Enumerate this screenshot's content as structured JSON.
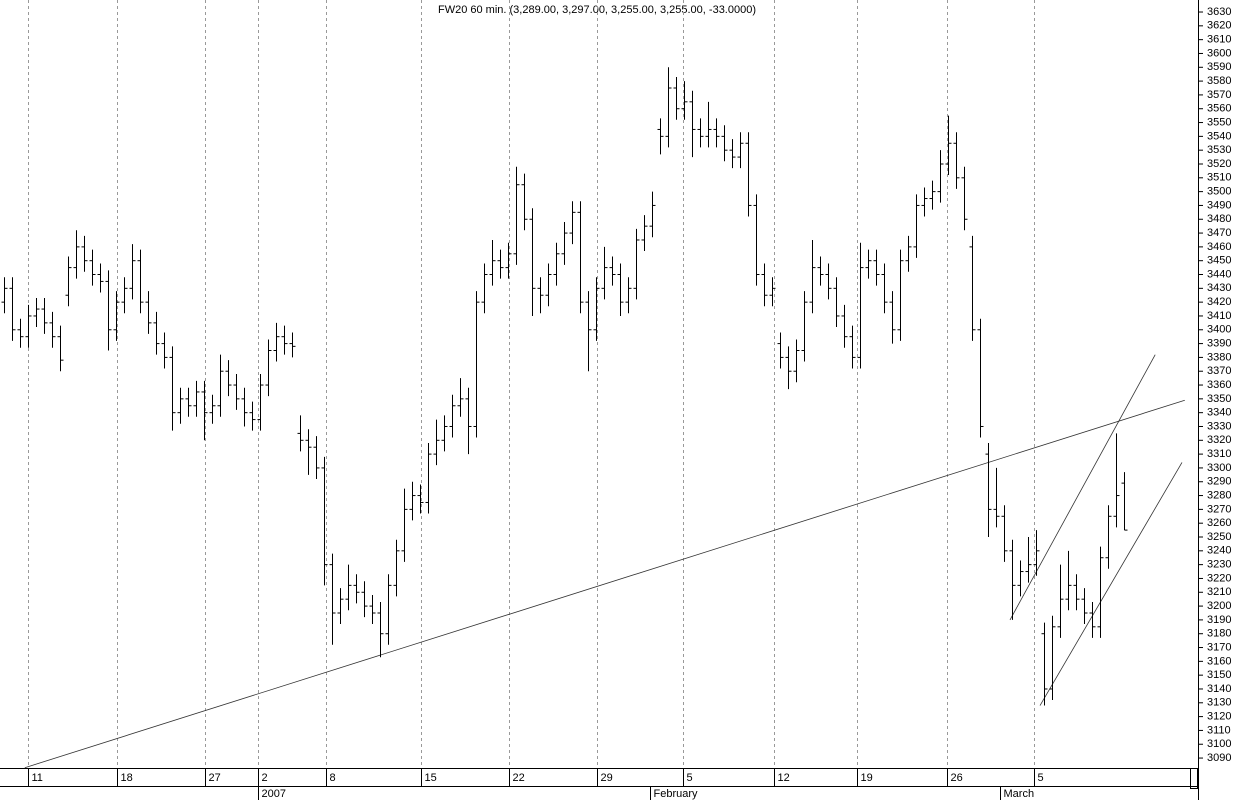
{
  "chart_data": {
    "type": "ohlc",
    "title": "FW20 60 min. (3,289.00, 3,297.00, 3,255.00, 3,255.00, -33.0000)",
    "color": "#000000",
    "ohlc": [
      [
        3420,
        3438,
        3412,
        3430
      ],
      [
        3430,
        3438,
        3392,
        3400
      ],
      [
        3400,
        3408,
        3387,
        3395
      ],
      [
        3395,
        3418,
        3387,
        3410
      ],
      [
        3410,
        3423,
        3402,
        3415
      ],
      [
        3415,
        3423,
        3397,
        3405
      ],
      [
        3405,
        3413,
        3387,
        3395
      ],
      [
        3395,
        3403,
        3370,
        3378
      ],
      [
        3425,
        3453,
        3417,
        3445
      ],
      [
        3445,
        3472,
        3437,
        3460
      ],
      [
        3460,
        3468,
        3442,
        3450
      ],
      [
        3450,
        3458,
        3432,
        3440
      ],
      [
        3440,
        3448,
        3427,
        3435
      ],
      [
        3435,
        3443,
        3385,
        3400
      ],
      [
        3400,
        3428,
        3392,
        3420
      ],
      [
        3420,
        3438,
        3412,
        3430
      ],
      [
        3430,
        3462,
        3422,
        3450
      ],
      [
        3450,
        3458,
        3412,
        3420
      ],
      [
        3420,
        3428,
        3397,
        3405
      ],
      [
        3405,
        3413,
        3382,
        3390
      ],
      [
        3390,
        3398,
        3372,
        3380
      ],
      [
        3380,
        3388,
        3327,
        3340
      ],
      [
        3340,
        3358,
        3332,
        3350
      ],
      [
        3350,
        3358,
        3337,
        3345
      ],
      [
        3345,
        3363,
        3337,
        3355
      ],
      [
        3355,
        3363,
        3320,
        3340
      ],
      [
        3340,
        3353,
        3332,
        3345
      ],
      [
        3345,
        3382,
        3337,
        3370
      ],
      [
        3370,
        3378,
        3352,
        3360
      ],
      [
        3360,
        3368,
        3342,
        3350
      ],
      [
        3350,
        3358,
        3330,
        3340
      ],
      [
        3340,
        3348,
        3327,
        3335
      ],
      [
        3335,
        3368,
        3327,
        3360
      ],
      [
        3360,
        3393,
        3352,
        3385
      ],
      [
        3385,
        3405,
        3377,
        3395
      ],
      [
        3395,
        3403,
        3382,
        3390
      ],
      [
        3390,
        3398,
        3380,
        3388
      ],
      [
        3325,
        3338,
        3312,
        3320
      ],
      [
        3320,
        3328,
        3295,
        3315
      ],
      [
        3315,
        3323,
        3292,
        3300
      ],
      [
        3300,
        3308,
        3215,
        3230
      ],
      [
        3230,
        3238,
        3172,
        3195
      ],
      [
        3195,
        3213,
        3187,
        3205
      ],
      [
        3205,
        3230,
        3197,
        3215
      ],
      [
        3215,
        3223,
        3202,
        3210
      ],
      [
        3210,
        3218,
        3192,
        3200
      ],
      [
        3200,
        3208,
        3187,
        3195
      ],
      [
        3195,
        3203,
        3163,
        3180
      ],
      [
        3180,
        3223,
        3172,
        3215
      ],
      [
        3215,
        3248,
        3207,
        3240
      ],
      [
        3240,
        3285,
        3232,
        3270
      ],
      [
        3270,
        3290,
        3262,
        3280
      ],
      [
        3280,
        3288,
        3267,
        3275
      ],
      [
        3275,
        3318,
        3267,
        3310
      ],
      [
        3310,
        3335,
        3302,
        3320
      ],
      [
        3320,
        3338,
        3312,
        3330
      ],
      [
        3330,
        3353,
        3322,
        3345
      ],
      [
        3345,
        3365,
        3337,
        3350
      ],
      [
        3350,
        3358,
        3310,
        3330
      ],
      [
        3330,
        3428,
        3322,
        3420
      ],
      [
        3420,
        3448,
        3412,
        3440
      ],
      [
        3440,
        3465,
        3432,
        3450
      ],
      [
        3450,
        3458,
        3437,
        3445
      ],
      [
        3445,
        3463,
        3437,
        3455
      ],
      [
        3455,
        3518,
        3447,
        3505
      ],
      [
        3505,
        3513,
        3472,
        3480
      ],
      [
        3480,
        3488,
        3410,
        3430
      ],
      [
        3430,
        3438,
        3412,
        3425
      ],
      [
        3425,
        3448,
        3417,
        3440
      ],
      [
        3440,
        3463,
        3432,
        3455
      ],
      [
        3455,
        3478,
        3447,
        3470
      ],
      [
        3470,
        3493,
        3462,
        3485
      ],
      [
        3485,
        3493,
        3412,
        3420
      ],
      [
        3420,
        3428,
        3370,
        3400
      ],
      [
        3400,
        3438,
        3392,
        3430
      ],
      [
        3430,
        3460,
        3422,
        3445
      ],
      [
        3445,
        3453,
        3432,
        3440
      ],
      [
        3440,
        3448,
        3410,
        3420
      ],
      [
        3420,
        3438,
        3412,
        3430
      ],
      [
        3430,
        3473,
        3422,
        3465
      ],
      [
        3465,
        3483,
        3457,
        3475
      ],
      [
        3475,
        3500,
        3467,
        3490
      ],
      [
        3545,
        3553,
        3527,
        3540
      ],
      [
        3540,
        3590,
        3532,
        3575
      ],
      [
        3575,
        3583,
        3552,
        3560
      ],
      [
        3560,
        3580,
        3552,
        3565
      ],
      [
        3565,
        3573,
        3525,
        3545
      ],
      [
        3545,
        3553,
        3532,
        3540
      ],
      [
        3540,
        3565,
        3532,
        3545
      ],
      [
        3545,
        3553,
        3532,
        3540
      ],
      [
        3540,
        3548,
        3522,
        3530
      ],
      [
        3530,
        3538,
        3517,
        3525
      ],
      [
        3525,
        3543,
        3517,
        3535
      ],
      [
        3535,
        3543,
        3482,
        3490
      ],
      [
        3490,
        3498,
        3432,
        3440
      ],
      [
        3440,
        3448,
        3417,
        3425
      ],
      [
        3425,
        3438,
        3417,
        3430
      ],
      [
        3390,
        3398,
        3372,
        3380
      ],
      [
        3380,
        3388,
        3357,
        3370
      ],
      [
        3370,
        3393,
        3362,
        3385
      ],
      [
        3385,
        3428,
        3377,
        3420
      ],
      [
        3420,
        3465,
        3412,
        3445
      ],
      [
        3445,
        3453,
        3432,
        3440
      ],
      [
        3440,
        3448,
        3422,
        3430
      ],
      [
        3430,
        3438,
        3402,
        3410
      ],
      [
        3410,
        3418,
        3387,
        3395
      ],
      [
        3395,
        3403,
        3372,
        3380
      ],
      [
        3380,
        3463,
        3372,
        3445
      ],
      [
        3445,
        3458,
        3437,
        3450
      ],
      [
        3450,
        3458,
        3432,
        3440
      ],
      [
        3440,
        3448,
        3412,
        3420
      ],
      [
        3420,
        3428,
        3390,
        3400
      ],
      [
        3400,
        3458,
        3392,
        3450
      ],
      [
        3450,
        3468,
        3442,
        3460
      ],
      [
        3460,
        3498,
        3452,
        3490
      ],
      [
        3490,
        3503,
        3482,
        3495
      ],
      [
        3495,
        3508,
        3487,
        3500
      ],
      [
        3500,
        3530,
        3492,
        3520
      ],
      [
        3520,
        3555,
        3512,
        3535
      ],
      [
        3535,
        3543,
        3502,
        3510
      ],
      [
        3510,
        3518,
        3472,
        3480
      ],
      [
        3460,
        3468,
        3392,
        3400
      ],
      [
        3400,
        3408,
        3322,
        3330
      ],
      [
        3310,
        3318,
        3250,
        3270
      ],
      [
        3270,
        3300,
        3257,
        3265
      ],
      [
        3265,
        3273,
        3232,
        3240
      ],
      [
        3240,
        3248,
        3190,
        3215
      ],
      [
        3215,
        3233,
        3207,
        3225
      ],
      [
        3225,
        3250,
        3217,
        3230
      ],
      [
        3230,
        3255,
        3222,
        3240
      ],
      [
        3180,
        3188,
        3128,
        3140
      ],
      [
        3140,
        3193,
        3132,
        3185
      ],
      [
        3185,
        3230,
        3177,
        3205
      ],
      [
        3205,
        3240,
        3197,
        3215
      ],
      [
        3215,
        3223,
        3197,
        3205
      ],
      [
        3205,
        3213,
        3187,
        3195
      ],
      [
        3195,
        3203,
        3177,
        3185
      ],
      [
        3185,
        3243,
        3177,
        3235
      ],
      [
        3235,
        3273,
        3227,
        3265
      ],
      [
        3265,
        3325,
        3257,
        3280
      ],
      [
        3289,
        3297,
        3255,
        3255
      ]
    ],
    "xlim": [
      -0.5,
      149.25
    ],
    "xticks": [
      {
        "value": 3,
        "label": "11"
      },
      {
        "value": 14.1,
        "label": "18"
      },
      {
        "value": 25.1,
        "label": "27"
      },
      {
        "value": 31.75,
        "label": "2"
      },
      {
        "value": 40.25,
        "label": "8"
      },
      {
        "value": 52.1,
        "label": "15"
      },
      {
        "value": 63.1,
        "label": "22"
      },
      {
        "value": 74.1,
        "label": "29"
      },
      {
        "value": 84.9,
        "label": "5"
      },
      {
        "value": 96.25,
        "label": "12"
      },
      {
        "value": 106.6,
        "label": "19"
      },
      {
        "value": 117.9,
        "label": "26"
      },
      {
        "value": 128.75,
        "label": "5"
      }
    ],
    "month_ticks": [
      {
        "value": 31.75,
        "label": "2007"
      },
      {
        "value": 80.75,
        "label": "February"
      },
      {
        "value": 124.5,
        "label": "March"
      }
    ],
    "ylim": [
      3082.8,
      3638.7
    ],
    "yticks": [
      3090,
      3100,
      3110,
      3120,
      3130,
      3140,
      3150,
      3160,
      3170,
      3180,
      3190,
      3200,
      3210,
      3220,
      3230,
      3240,
      3250,
      3260,
      3270,
      3280,
      3290,
      3300,
      3310,
      3320,
      3330,
      3340,
      3350,
      3360,
      3370,
      3380,
      3390,
      3400,
      3410,
      3420,
      3430,
      3440,
      3450,
      3460,
      3470,
      3480,
      3490,
      3500,
      3510,
      3520,
      3530,
      3540,
      3550,
      3560,
      3570,
      3580,
      3590,
      3600,
      3610,
      3620,
      3630
    ],
    "trendlines": [
      [
        2.6,
        3083,
        147.6,
        3349
      ],
      [
        125.75,
        3190,
        143.9,
        3382
      ],
      [
        129.5,
        3128,
        147.25,
        3304
      ]
    ],
    "grid": true
  }
}
